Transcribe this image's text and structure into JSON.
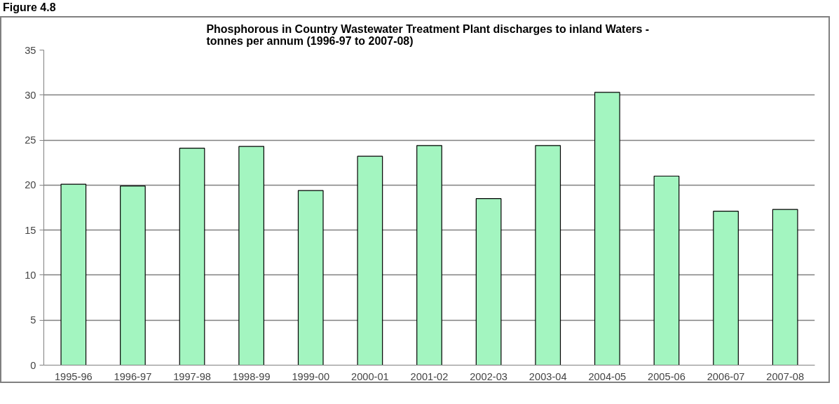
{
  "chart_data": {
    "type": "bar",
    "title": "Phosphorous in Country Wastewater  Treatment Plant discharges to inland Waters -\ntonnes per annum (1996-97  to 2007-08)",
    "annotations": [
      "Figure 4.8"
    ],
    "categories": [
      "1995-96",
      "1996-97",
      "1997-98",
      "1998-99",
      "1999-00",
      "2000-01",
      "2001-02",
      "2002-03",
      "2003-04",
      "2004-05",
      "2005-06",
      "2006-07",
      "2007-08"
    ],
    "values": [
      20.1,
      19.9,
      24.1,
      24.3,
      19.4,
      23.2,
      24.4,
      18.5,
      24.4,
      30.3,
      21.0,
      17.1,
      17.3
    ],
    "color": "#a3f5c0",
    "ylim": [
      0,
      35
    ],
    "yticks": [
      0,
      5,
      10,
      15,
      20,
      25,
      30,
      35
    ],
    "grid": "y"
  }
}
